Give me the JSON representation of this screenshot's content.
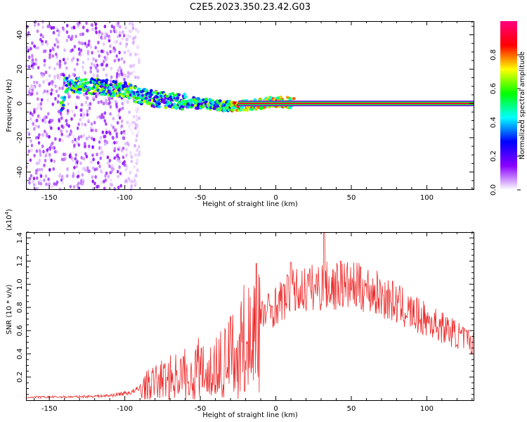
{
  "title": "C2E5.2023.350.23.42.G03",
  "chart_data": [
    {
      "type": "heatmap",
      "xlabel": "Height of straight line (km)",
      "ylabel": "Frequency (Hz)",
      "xlim": [
        -165,
        131
      ],
      "ylim": [
        -50,
        48
      ],
      "x_ticks": [
        -150,
        -100,
        -50,
        0,
        50,
        100
      ],
      "y_ticks": [
        -40,
        -20,
        0,
        20,
        40
      ],
      "colorbar": {
        "label": "Normalized spectral amplitude",
        "range": [
          0,
          1
        ],
        "ticks": [
          "0.0",
          "0.2",
          "0.4",
          "0.6",
          "0.8"
        ],
        "colors": [
          "#ffffff",
          "#8a00ff",
          "#0000ff",
          "#00ffff",
          "#00ff00",
          "#ffff00",
          "#ff0000",
          "#ff0080"
        ]
      },
      "ridge": [
        {
          "x": -140,
          "y": 11
        },
        {
          "x": -120,
          "y": 10
        },
        {
          "x": -100,
          "y": 8
        },
        {
          "x": -90,
          "y": 4
        },
        {
          "x": -75,
          "y": 2
        },
        {
          "x": -60,
          "y": 1
        },
        {
          "x": -40,
          "y": -1
        },
        {
          "x": -25,
          "y": -2
        },
        {
          "x": -10,
          "y": 0
        },
        {
          "x": 0,
          "y": 1
        },
        {
          "x": 15,
          "y": 0
        },
        {
          "x": 131,
          "y": 0
        }
      ]
    },
    {
      "type": "line",
      "xlabel": "Height of straight line (km)",
      "ylabel": "SNR (10 * v/v)",
      "yscale_label": "(x10",
      "yscale_exp": "4",
      "yscale_close": ")",
      "xlim": [
        -165,
        131
      ],
      "ylim": [
        0,
        14500
      ],
      "x_ticks": [
        -150,
        -100,
        -50,
        0,
        50,
        100
      ],
      "y_ticks": [
        2000,
        4000,
        6000,
        8000,
        10000,
        12000,
        14000
      ],
      "y_tick_labels": [
        "0.2",
        "0.4",
        "0.6",
        "0.8",
        "1.0",
        "1.2",
        "1.4"
      ],
      "color": "#ee2a2a",
      "envelope": [
        {
          "x": -165,
          "y": 250
        },
        {
          "x": -130,
          "y": 300
        },
        {
          "x": -110,
          "y": 400
        },
        {
          "x": -95,
          "y": 700
        },
        {
          "x": -85,
          "y": 1300
        },
        {
          "x": -75,
          "y": 1800
        },
        {
          "x": -60,
          "y": 2300
        },
        {
          "x": -48,
          "y": 3000
        },
        {
          "x": -38,
          "y": 3500
        },
        {
          "x": -28,
          "y": 4200
        },
        {
          "x": -20,
          "y": 5500
        },
        {
          "x": -12,
          "y": 7000
        },
        {
          "x": 0,
          "y": 8200
        },
        {
          "x": 10,
          "y": 9200
        },
        {
          "x": 20,
          "y": 9600
        },
        {
          "x": 30,
          "y": 9800
        },
        {
          "x": 45,
          "y": 9900
        },
        {
          "x": 60,
          "y": 9600
        },
        {
          "x": 75,
          "y": 8700
        },
        {
          "x": 90,
          "y": 7500
        },
        {
          "x": 105,
          "y": 6600
        },
        {
          "x": 115,
          "y": 6000
        },
        {
          "x": 125,
          "y": 5300
        },
        {
          "x": 131,
          "y": 4900
        }
      ],
      "peaks": [
        {
          "x": -30,
          "y": 7200
        },
        {
          "x": -13,
          "y": 11800
        },
        {
          "x": 10,
          "y": 11900
        },
        {
          "x": 32,
          "y": 14400
        },
        {
          "x": 43,
          "y": 12000
        },
        {
          "x": 56,
          "y": 11500
        }
      ]
    }
  ]
}
